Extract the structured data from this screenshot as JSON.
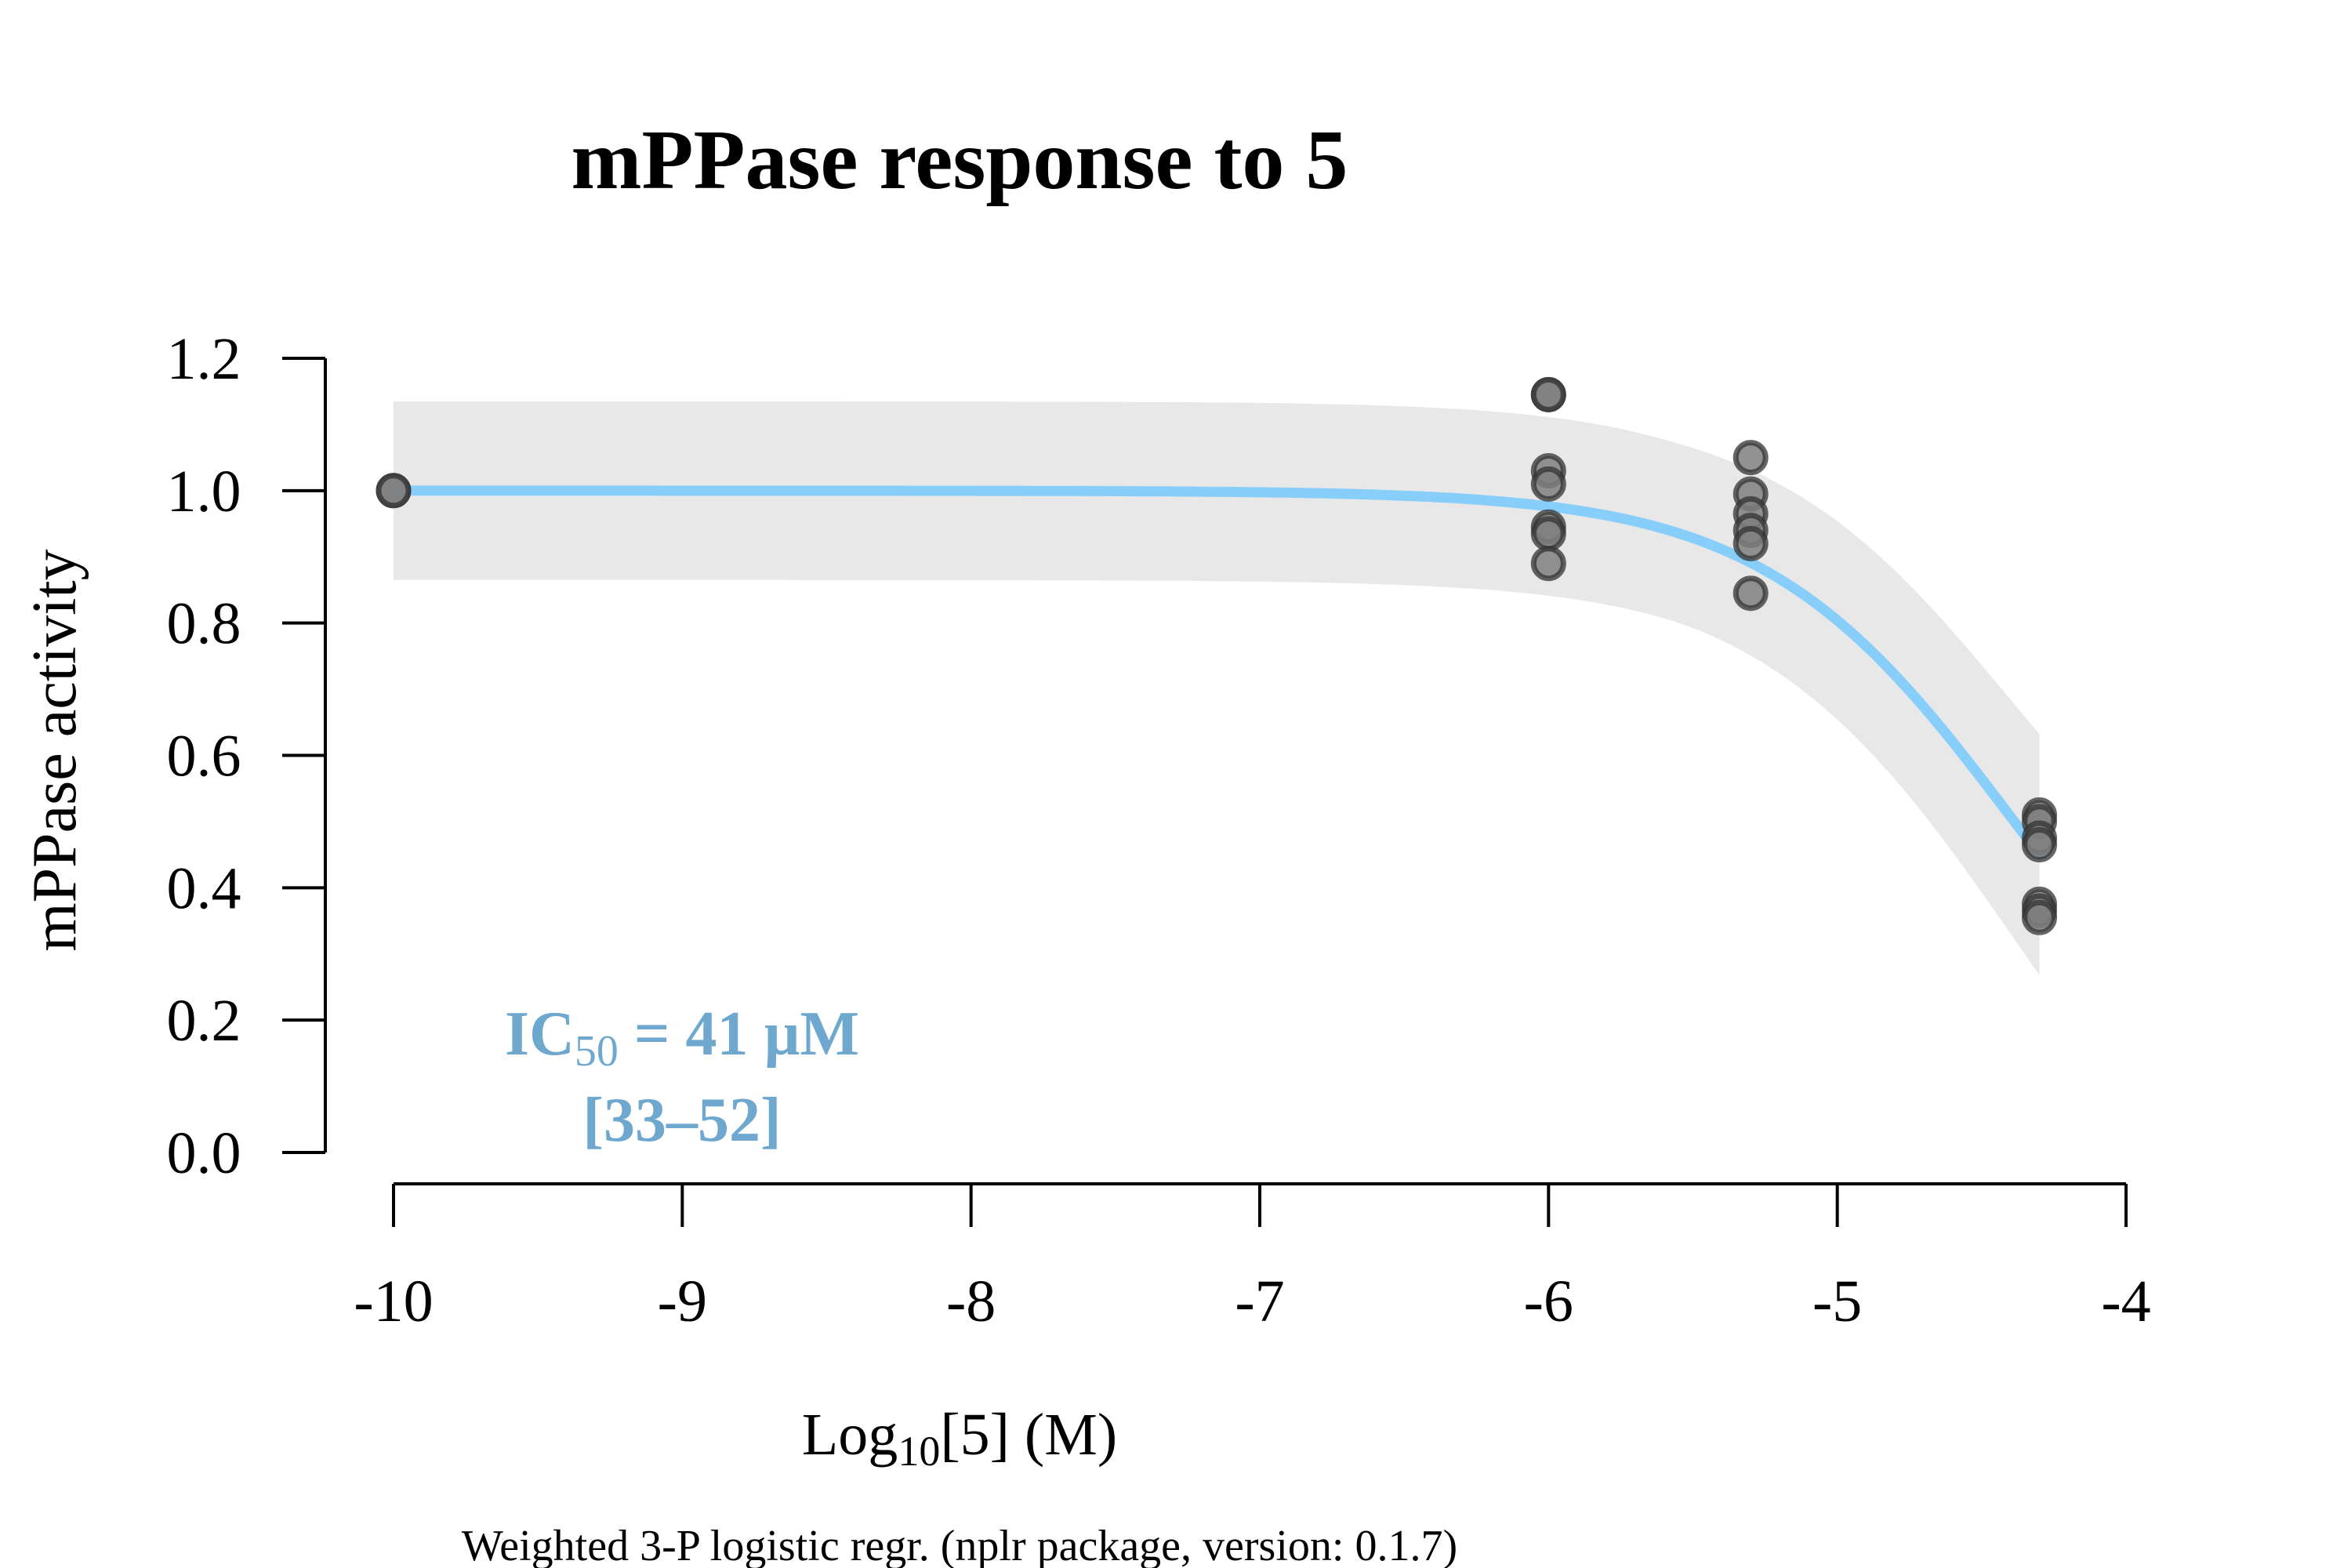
{
  "chart_data": {
    "type": "scatter",
    "title": "mPPase response to 5",
    "xlabel_prefix": "Log",
    "xlabel_sub": "10",
    "xlabel_suffix": "[5] (M)",
    "ylabel": "mPPase activity",
    "subtitle": "Weighted 3-P logistic regr. (nplr package, version: 0.1.7)",
    "xlim": [
      -10,
      -4
    ],
    "ylim": [
      0,
      1.2
    ],
    "x_ticks": [
      -10,
      -9,
      -8,
      -7,
      -6,
      -5,
      -4
    ],
    "x_tick_labels": [
      "-10",
      "-9",
      "-8",
      "-7",
      "-6",
      "-5",
      "-4"
    ],
    "y_ticks": [
      0,
      0.2,
      0.4,
      0.6,
      0.8,
      1.0,
      1.2
    ],
    "y_tick_labels": [
      "0.0",
      "0.2",
      "0.4",
      "0.6",
      "0.8",
      "1.0",
      "1.2"
    ],
    "points": [
      {
        "x": -10,
        "y": 1.0
      },
      {
        "x": -10,
        "y": 1.0
      },
      {
        "x": -6,
        "y": 1.145
      },
      {
        "x": -6,
        "y": 1.145
      },
      {
        "x": -6,
        "y": 1.03
      },
      {
        "x": -6,
        "y": 1.01
      },
      {
        "x": -6,
        "y": 0.945
      },
      {
        "x": -6,
        "y": 0.935
      },
      {
        "x": -6,
        "y": 0.89
      },
      {
        "x": -5.3,
        "y": 1.05
      },
      {
        "x": -5.3,
        "y": 0.995
      },
      {
        "x": -5.3,
        "y": 0.965
      },
      {
        "x": -5.3,
        "y": 0.94
      },
      {
        "x": -5.3,
        "y": 0.92
      },
      {
        "x": -5.3,
        "y": 0.845
      },
      {
        "x": -4.3,
        "y": 0.51
      },
      {
        "x": -4.3,
        "y": 0.5
      },
      {
        "x": -4.3,
        "y": 0.475
      },
      {
        "x": -4.3,
        "y": 0.465
      },
      {
        "x": -4.3,
        "y": 0.375
      },
      {
        "x": -4.3,
        "y": 0.365
      },
      {
        "x": -4.3,
        "y": 0.355
      }
    ],
    "fit": {
      "model": "3-P logistic",
      "bottom": 0,
      "top": 1.0,
      "log_ic50": -4.387,
      "slope": 1.0,
      "x_range": [
        -10,
        -4.3
      ],
      "ci_half_width": 0.135,
      "ci_taper_to": 0.07
    },
    "annotation": {
      "ic_prefix": "IC",
      "ic_sub": "50",
      "ic_value": " = 41 µM",
      "ci": "[33–52]"
    },
    "colors": {
      "fit_line": "#87CEFA",
      "ci_band": "#E8E8E8",
      "point_fill": "#7F7F7F",
      "point_stroke": "#333333",
      "annotation": "#6FA8CF",
      "axis": "#000000"
    }
  }
}
